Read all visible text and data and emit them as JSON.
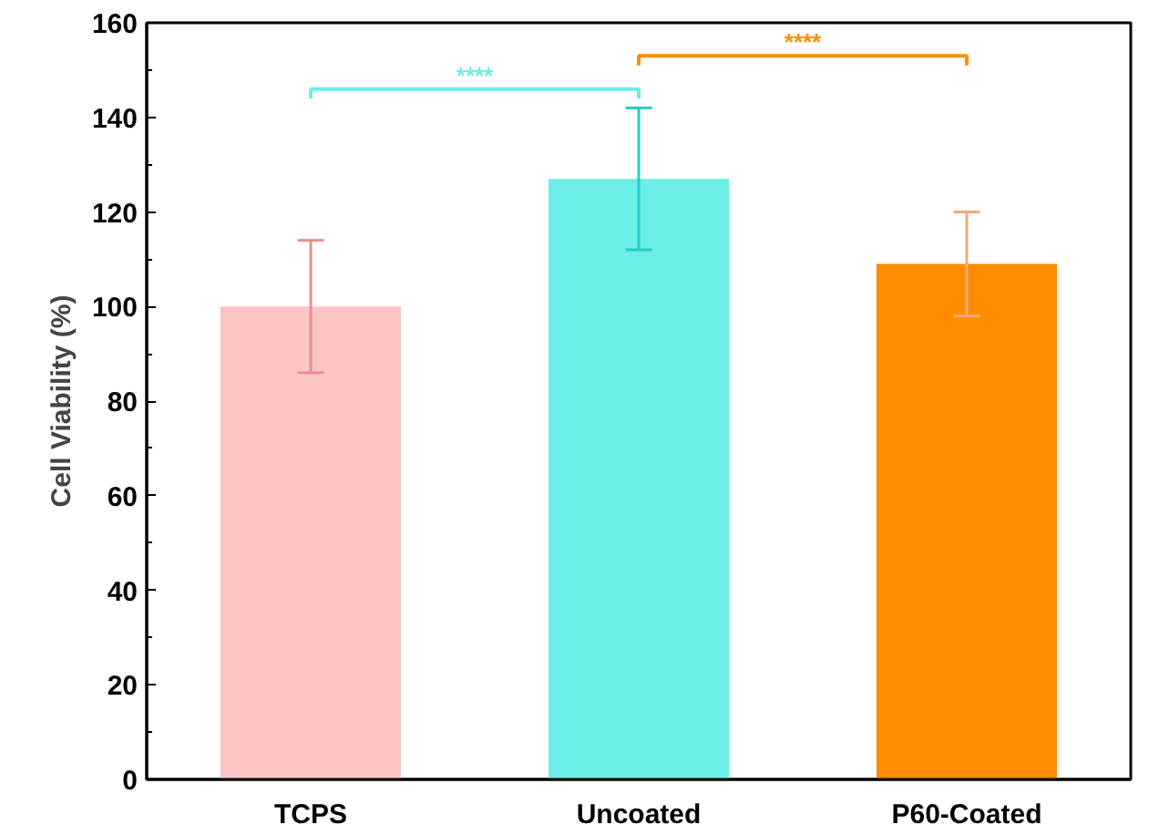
{
  "chart_data": {
    "type": "bar",
    "ylabel": "Cell Viability (%)",
    "categories": [
      "TCPS",
      "Uncoated",
      "P60-Coated"
    ],
    "values": [
      100,
      127,
      109
    ],
    "errors": [
      14,
      15,
      11
    ],
    "colors": [
      "#fcc5c5",
      "#6aeee6",
      "#ff8c00"
    ],
    "ylim": [
      0,
      160
    ],
    "yticks": [
      0,
      20,
      40,
      60,
      80,
      100,
      120,
      140,
      160
    ],
    "grid": false,
    "annotations": [
      "****",
      "****"
    ]
  }
}
